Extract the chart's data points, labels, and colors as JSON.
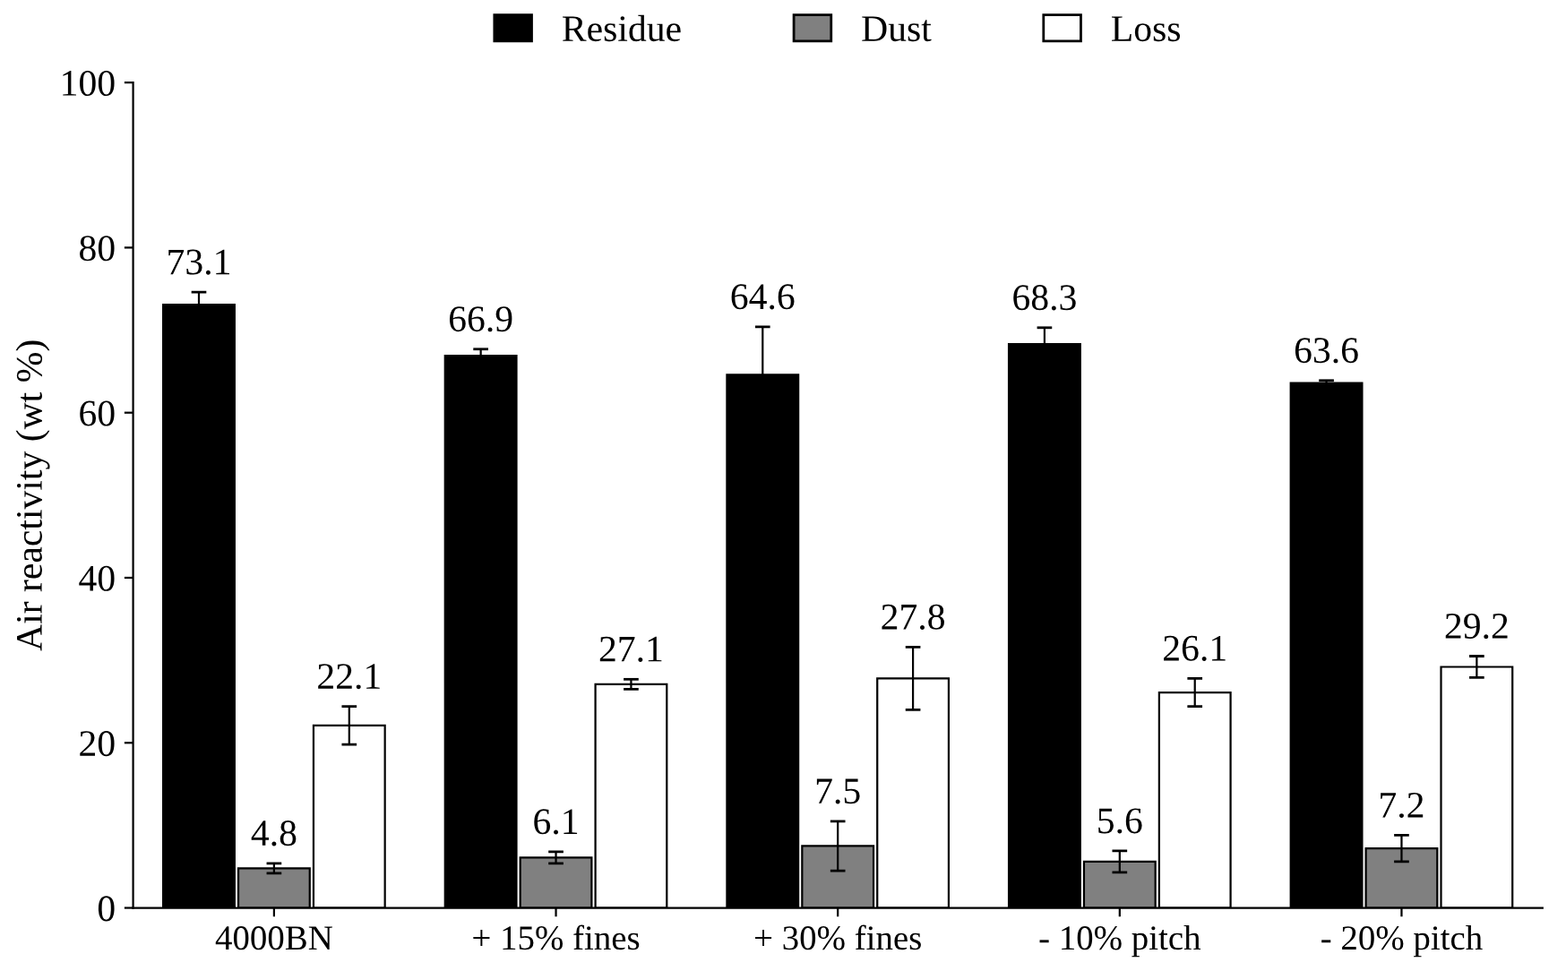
{
  "chart_data": {
    "type": "bar",
    "ylabel": "Air reactivity (wt %)",
    "categories": [
      "4000BN",
      "+ 15% fines",
      "+ 30% fines",
      "- 10% pitch",
      "- 20% pitch"
    ],
    "series": [
      {
        "name": "Residue",
        "color": "#000000",
        "values": [
          73.1,
          66.9,
          64.6,
          68.3,
          63.6
        ],
        "errors": [
          1.5,
          0.8,
          5.8,
          2.0,
          0.3
        ]
      },
      {
        "name": "Dust",
        "color": "#808080",
        "values": [
          4.8,
          6.1,
          7.5,
          5.6,
          7.2
        ],
        "errors": [
          0.6,
          0.7,
          3.0,
          1.3,
          1.6
        ]
      },
      {
        "name": "Loss",
        "color": "#ffffff",
        "values": [
          22.1,
          27.1,
          27.8,
          26.1,
          29.2
        ],
        "errors": [
          2.3,
          0.6,
          3.8,
          1.7,
          1.3
        ]
      }
    ],
    "ylim": [
      0,
      100
    ],
    "yticks": [
      0,
      20,
      40,
      60,
      80,
      100
    ],
    "data_labels": true,
    "legend": "top",
    "grid": false
  }
}
